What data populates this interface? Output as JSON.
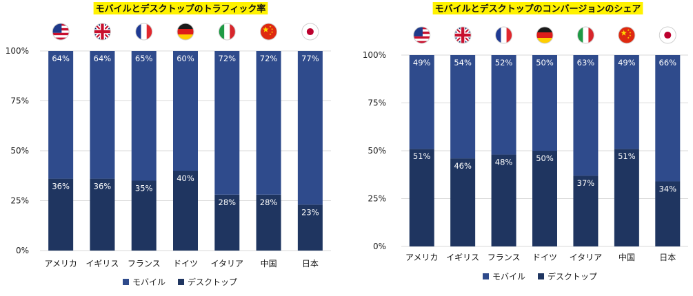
{
  "chart_data": [
    {
      "type": "bar",
      "stacked": true,
      "title": "モバイルとデスクトップのトラフィック率",
      "categories": [
        "アメリカ",
        "イギリス",
        "フランス",
        "ドイツ",
        "イタリア",
        "中国",
        "日本"
      ],
      "flags": [
        "us-flag-icon",
        "uk-flag-icon",
        "france-flag-icon",
        "germany-flag-icon",
        "italy-flag-icon",
        "china-flag-icon",
        "japan-flag-icon"
      ],
      "series": [
        {
          "name": "デスクトップ",
          "values": [
            36,
            36,
            35,
            40,
            28,
            28,
            23
          ],
          "labels": [
            "36%",
            "36%",
            "35%",
            "40%",
            "28%",
            "28%",
            "23%"
          ],
          "color": "#1f3560"
        },
        {
          "name": "モバイル",
          "values": [
            64,
            64,
            65,
            60,
            72,
            72,
            77
          ],
          "labels": [
            "64%",
            "64%",
            "65%",
            "60%",
            "72%",
            "72%",
            "77%"
          ],
          "color": "#2f4b8c"
        }
      ],
      "ylim": [
        0,
        100
      ],
      "yticks": [
        "0%",
        "25%",
        "50%",
        "75%",
        "100%"
      ],
      "grid": true,
      "legend": [
        "モバイル",
        "デスクトップ"
      ],
      "legend_position": "bottom"
    },
    {
      "type": "bar",
      "stacked": true,
      "title": "モバイルとデスクトップのコンバージョンのシェア",
      "categories": [
        "アメリカ",
        "イギリス",
        "フランス",
        "ドイツ",
        "イタリア",
        "中国",
        "日本"
      ],
      "flags": [
        "us-flag-icon",
        "uk-flag-icon",
        "france-flag-icon",
        "germany-flag-icon",
        "italy-flag-icon",
        "china-flag-icon",
        "japan-flag-icon"
      ],
      "series": [
        {
          "name": "デスクトップ",
          "values": [
            51,
            46,
            48,
            50,
            37,
            51,
            34
          ],
          "labels": [
            "51%",
            "46%",
            "48%",
            "50%",
            "37%",
            "51%",
            "34%"
          ],
          "color": "#1f3560"
        },
        {
          "name": "モバイル",
          "values": [
            49,
            54,
            52,
            50,
            63,
            49,
            66
          ],
          "labels": [
            "49%",
            "54%",
            "52%",
            "50%",
            "63%",
            "49%",
            "66%"
          ],
          "color": "#2f4b8c"
        }
      ],
      "ylim": [
        0,
        100
      ],
      "yticks": [
        "0%",
        "25%",
        "50%",
        "75%",
        "100%"
      ],
      "grid": true,
      "legend": [
        "モバイル",
        "デスクトップ"
      ],
      "legend_position": "bottom"
    }
  ]
}
